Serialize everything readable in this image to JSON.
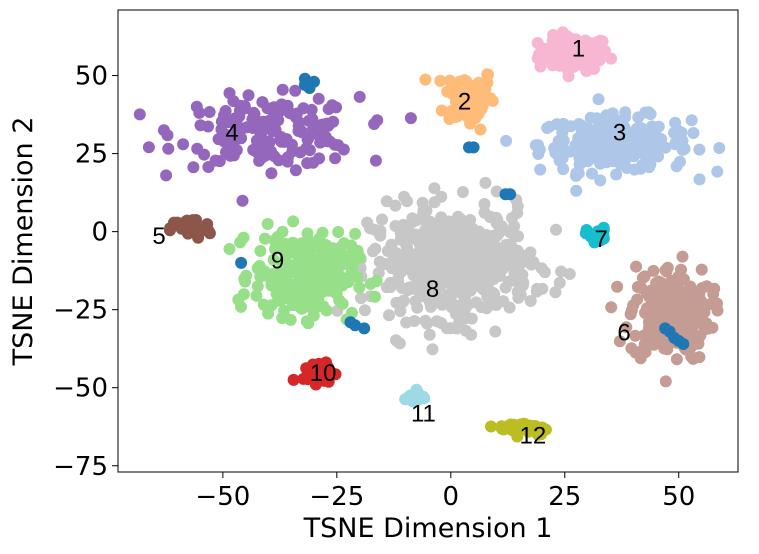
{
  "chart_data": {
    "type": "scatter",
    "title": "",
    "xlabel": "TSNE Dimension 1",
    "ylabel": "TSNE Dimension 2",
    "xlim": [
      -73,
      63
    ],
    "ylim": [
      -77,
      71
    ],
    "xticks": [
      -50,
      -25,
      0,
      25,
      50
    ],
    "yticks": [
      50,
      25,
      0,
      -25,
      -50,
      -75
    ],
    "xtick_labels": [
      "−50",
      "−25",
      "0",
      "25",
      "50"
    ],
    "ytick_labels": [
      "50",
      "25",
      "0",
      "−25",
      "−50",
      "−75"
    ],
    "grid": false,
    "legend": "none",
    "clusters": [
      {
        "label": "1",
        "color": "#f7b6d2",
        "x": 27,
        "y": 57,
        "spread": [
          7,
          5
        ],
        "count": 110,
        "label_pos": [
          28,
          59
        ]
      },
      {
        "label": "2",
        "color": "#ffbb78",
        "x": 4,
        "y": 43,
        "spread": [
          5,
          9
        ],
        "count": 70,
        "label_pos": [
          3,
          42
        ]
      },
      {
        "label": "3",
        "color": "#aec7e8",
        "x": 36,
        "y": 28,
        "spread": [
          15,
          8
        ],
        "count": 230,
        "label_pos": [
          37,
          32
        ]
      },
      {
        "label": "4",
        "color": "#9467bd",
        "x": -40,
        "y": 32,
        "spread": [
          18,
          10
        ],
        "count": 170,
        "label_pos": [
          -48,
          32
        ]
      },
      {
        "label": "5",
        "color": "#8c564b",
        "x": -57,
        "y": 1,
        "spread": [
          4,
          3
        ],
        "count": 40,
        "label_pos": [
          -64,
          -1
        ]
      },
      {
        "label": "6",
        "color": "#c49c94",
        "x": 48,
        "y": -26,
        "spread": [
          8,
          14
        ],
        "count": 200,
        "label_pos": [
          38,
          -32
        ]
      },
      {
        "label": "7",
        "color": "#17becf",
        "x": 32,
        "y": -1,
        "spread": [
          2,
          2
        ],
        "count": 25,
        "label_pos": [
          33,
          -2
        ]
      },
      {
        "label": "8",
        "color": "#c7c7c7",
        "x": 0,
        "y": -10,
        "spread": [
          16,
          16
        ],
        "count": 520,
        "label_pos": [
          -4,
          -18
        ]
      },
      {
        "label": "9",
        "color": "#98df8a",
        "x": -32,
        "y": -14,
        "spread": [
          10,
          12
        ],
        "count": 260,
        "label_pos": [
          -38,
          -9
        ]
      },
      {
        "label": "10",
        "color": "#d62728",
        "x": -29,
        "y": -45,
        "spread": [
          3,
          3
        ],
        "count": 35,
        "label_pos": [
          -28,
          -45
        ]
      },
      {
        "label": "11",
        "color": "#9edae5",
        "x": -8,
        "y": -53,
        "spread": [
          2,
          2
        ],
        "count": 15,
        "label_pos": [
          -6,
          -58
        ]
      },
      {
        "label": "12",
        "color": "#bcbd22",
        "x": 16,
        "y": -63,
        "spread": [
          5,
          2
        ],
        "count": 50,
        "label_pos": [
          18,
          -65
        ]
      }
    ],
    "extra_series": [
      {
        "name": "",
        "color": "#1f77b4",
        "points": [
          [
            -31,
            47
          ],
          [
            -32,
            49
          ],
          [
            -30,
            48
          ],
          [
            -32,
            47
          ],
          [
            -31,
            46
          ],
          [
            5,
            27
          ],
          [
            4,
            27
          ],
          [
            12,
            12
          ],
          [
            13,
            12
          ],
          [
            -46,
            -10
          ],
          [
            -21,
            -30
          ],
          [
            -19,
            -31
          ],
          [
            -22,
            -29
          ],
          [
            48,
            -32
          ],
          [
            49,
            -34
          ],
          [
            50,
            -35
          ],
          [
            51,
            -36
          ],
          [
            47,
            -31
          ]
        ]
      }
    ]
  }
}
